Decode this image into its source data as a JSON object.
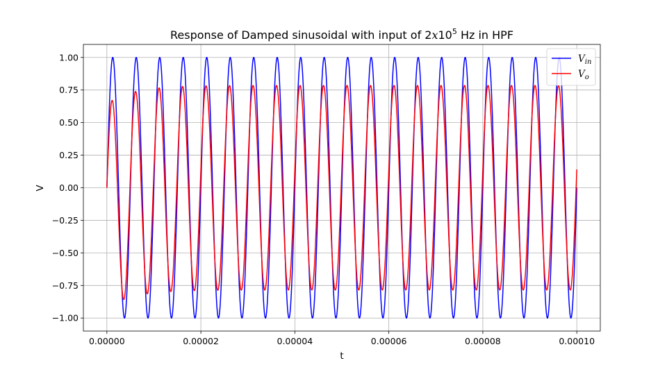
{
  "chart_data": {
    "type": "line",
    "title": {
      "prefix": "Response of Damped sinusoidal with input of 2",
      "math_x": "x",
      "base": "10",
      "exponent": "5",
      "suffix": " Hz in HPF"
    },
    "xlabel": "t",
    "ylabel": "V",
    "xlim": [
      -5e-06,
      0.000105
    ],
    "ylim": [
      -1.1,
      1.1
    ],
    "x_ticks": [
      0,
      2e-05,
      4e-05,
      6e-05,
      8e-05,
      0.0001
    ],
    "x_tick_labels": [
      "0.00000",
      "0.00002",
      "0.00004",
      "0.00006",
      "0.00008",
      "0.00010"
    ],
    "y_ticks": [
      -1.0,
      -0.75,
      -0.5,
      -0.25,
      0.0,
      0.25,
      0.5,
      0.75,
      1.0
    ],
    "y_tick_labels": [
      "−1.00",
      "−0.75",
      "−0.50",
      "−0.25",
      "0.00",
      "0.25",
      "0.50",
      "0.75",
      "1.00"
    ],
    "grid": true,
    "legend_position": "top-right",
    "series": [
      {
        "name": "V_in",
        "legend_main": "V",
        "legend_sub": "in",
        "color": "#0000ff",
        "frequency_hz": 200000,
        "amplitude": 1.0,
        "t_range": [
          0,
          0.0001
        ],
        "approx_extrema": [
          [
            1.25e-06,
            1.0
          ],
          [
            3.75e-06,
            -1.0
          ],
          [
            5.125e-05,
            1.0
          ],
          [
            5.375e-05,
            -1.0
          ],
          [
            9.625e-05,
            1.0
          ],
          [
            9.875e-05,
            -1.0
          ]
        ],
        "end_value": 0.0
      },
      {
        "name": "V_o",
        "legend_main": "V",
        "legend_sub": "o",
        "color": "#ff0000",
        "frequency_hz": 200000,
        "steady_amplitude": 0.785,
        "t_range": [
          0,
          0.0001
        ],
        "approx_extrema": [
          [
            1.2e-06,
            0.67
          ],
          [
            3.6e-06,
            -0.86
          ],
          [
            6.1e-06,
            0.74
          ],
          [
            8.6e-06,
            -0.81
          ],
          [
            1.11e-05,
            0.77
          ],
          [
            1.36e-05,
            -0.79
          ],
          [
            1.61e-05,
            0.78
          ],
          [
            1.86e-05,
            -0.79
          ],
          [
            9.61e-05,
            0.785
          ],
          [
            9.86e-05,
            -0.785
          ]
        ],
        "end_value": 0.14
      }
    ]
  }
}
